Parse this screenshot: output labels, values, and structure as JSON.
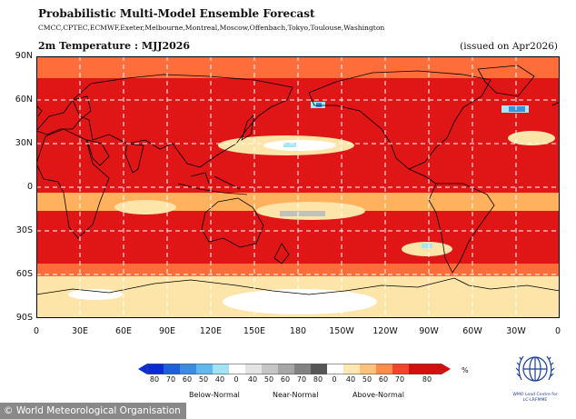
{
  "header": {
    "title": "Probabilistic Multi-Model Ensemble Forecast",
    "models": "CMCC,CPTEC,ECMWF,Exeter,Melbourne,Montreal,Moscow,Offenbach,Tokyo,Toulouse,Washington",
    "subtitle": "2m Temperature : MJJ2026",
    "issued": "(issued on Apr2026)"
  },
  "map": {
    "lat_labels": [
      "90N",
      "60N",
      "30N",
      "0",
      "30S",
      "60S",
      "90S"
    ],
    "lon_labels": [
      "0",
      "30E",
      "60E",
      "90E",
      "120E",
      "150E",
      "180",
      "150W",
      "120W",
      "90W",
      "60W",
      "30W",
      "0"
    ],
    "colors": {
      "above_80": "#e01515",
      "above_60": "#ff6d3a",
      "above_50": "#ffb15e",
      "above_40": "#fde4a8",
      "near_normal": "#ffffff",
      "below_40": "#a6e6f7",
      "below_60": "#3f8fe0",
      "grid": "#ffffff",
      "coast": "#000000",
      "land_near_normal": "#c0c0c0"
    }
  },
  "colorbar": {
    "below_ticks": [
      "80",
      "70",
      "60",
      "50",
      "40"
    ],
    "near_ticks": [
      "0",
      "40",
      "50",
      "60",
      "70",
      "80"
    ],
    "above_ticks": [
      "0",
      "40",
      "50",
      "60",
      "70",
      "80"
    ],
    "unit": "%",
    "below_label": "Below-Normal",
    "near_label": "Near-Normal",
    "above_label": "Above-Normal",
    "below_colors": [
      "#0a2bd6",
      "#1f5fd8",
      "#3c8be0",
      "#62b7ee",
      "#a3e2f6"
    ],
    "near_colors": [
      "#ffffff",
      "#e4e4e4",
      "#c6c6c6",
      "#a6a6a6",
      "#828282",
      "#565656"
    ],
    "above_colors": [
      "#ffffff",
      "#fde8b3",
      "#ffc27a",
      "#ff8c4a",
      "#f4432a",
      "#d70e0e"
    ]
  },
  "credit": "© World Meteorological Organisation",
  "logo": {
    "icon": "wmo-emblem-icon",
    "line1": "WMO Lead Centre for",
    "line2": "LC-LRFMME"
  }
}
